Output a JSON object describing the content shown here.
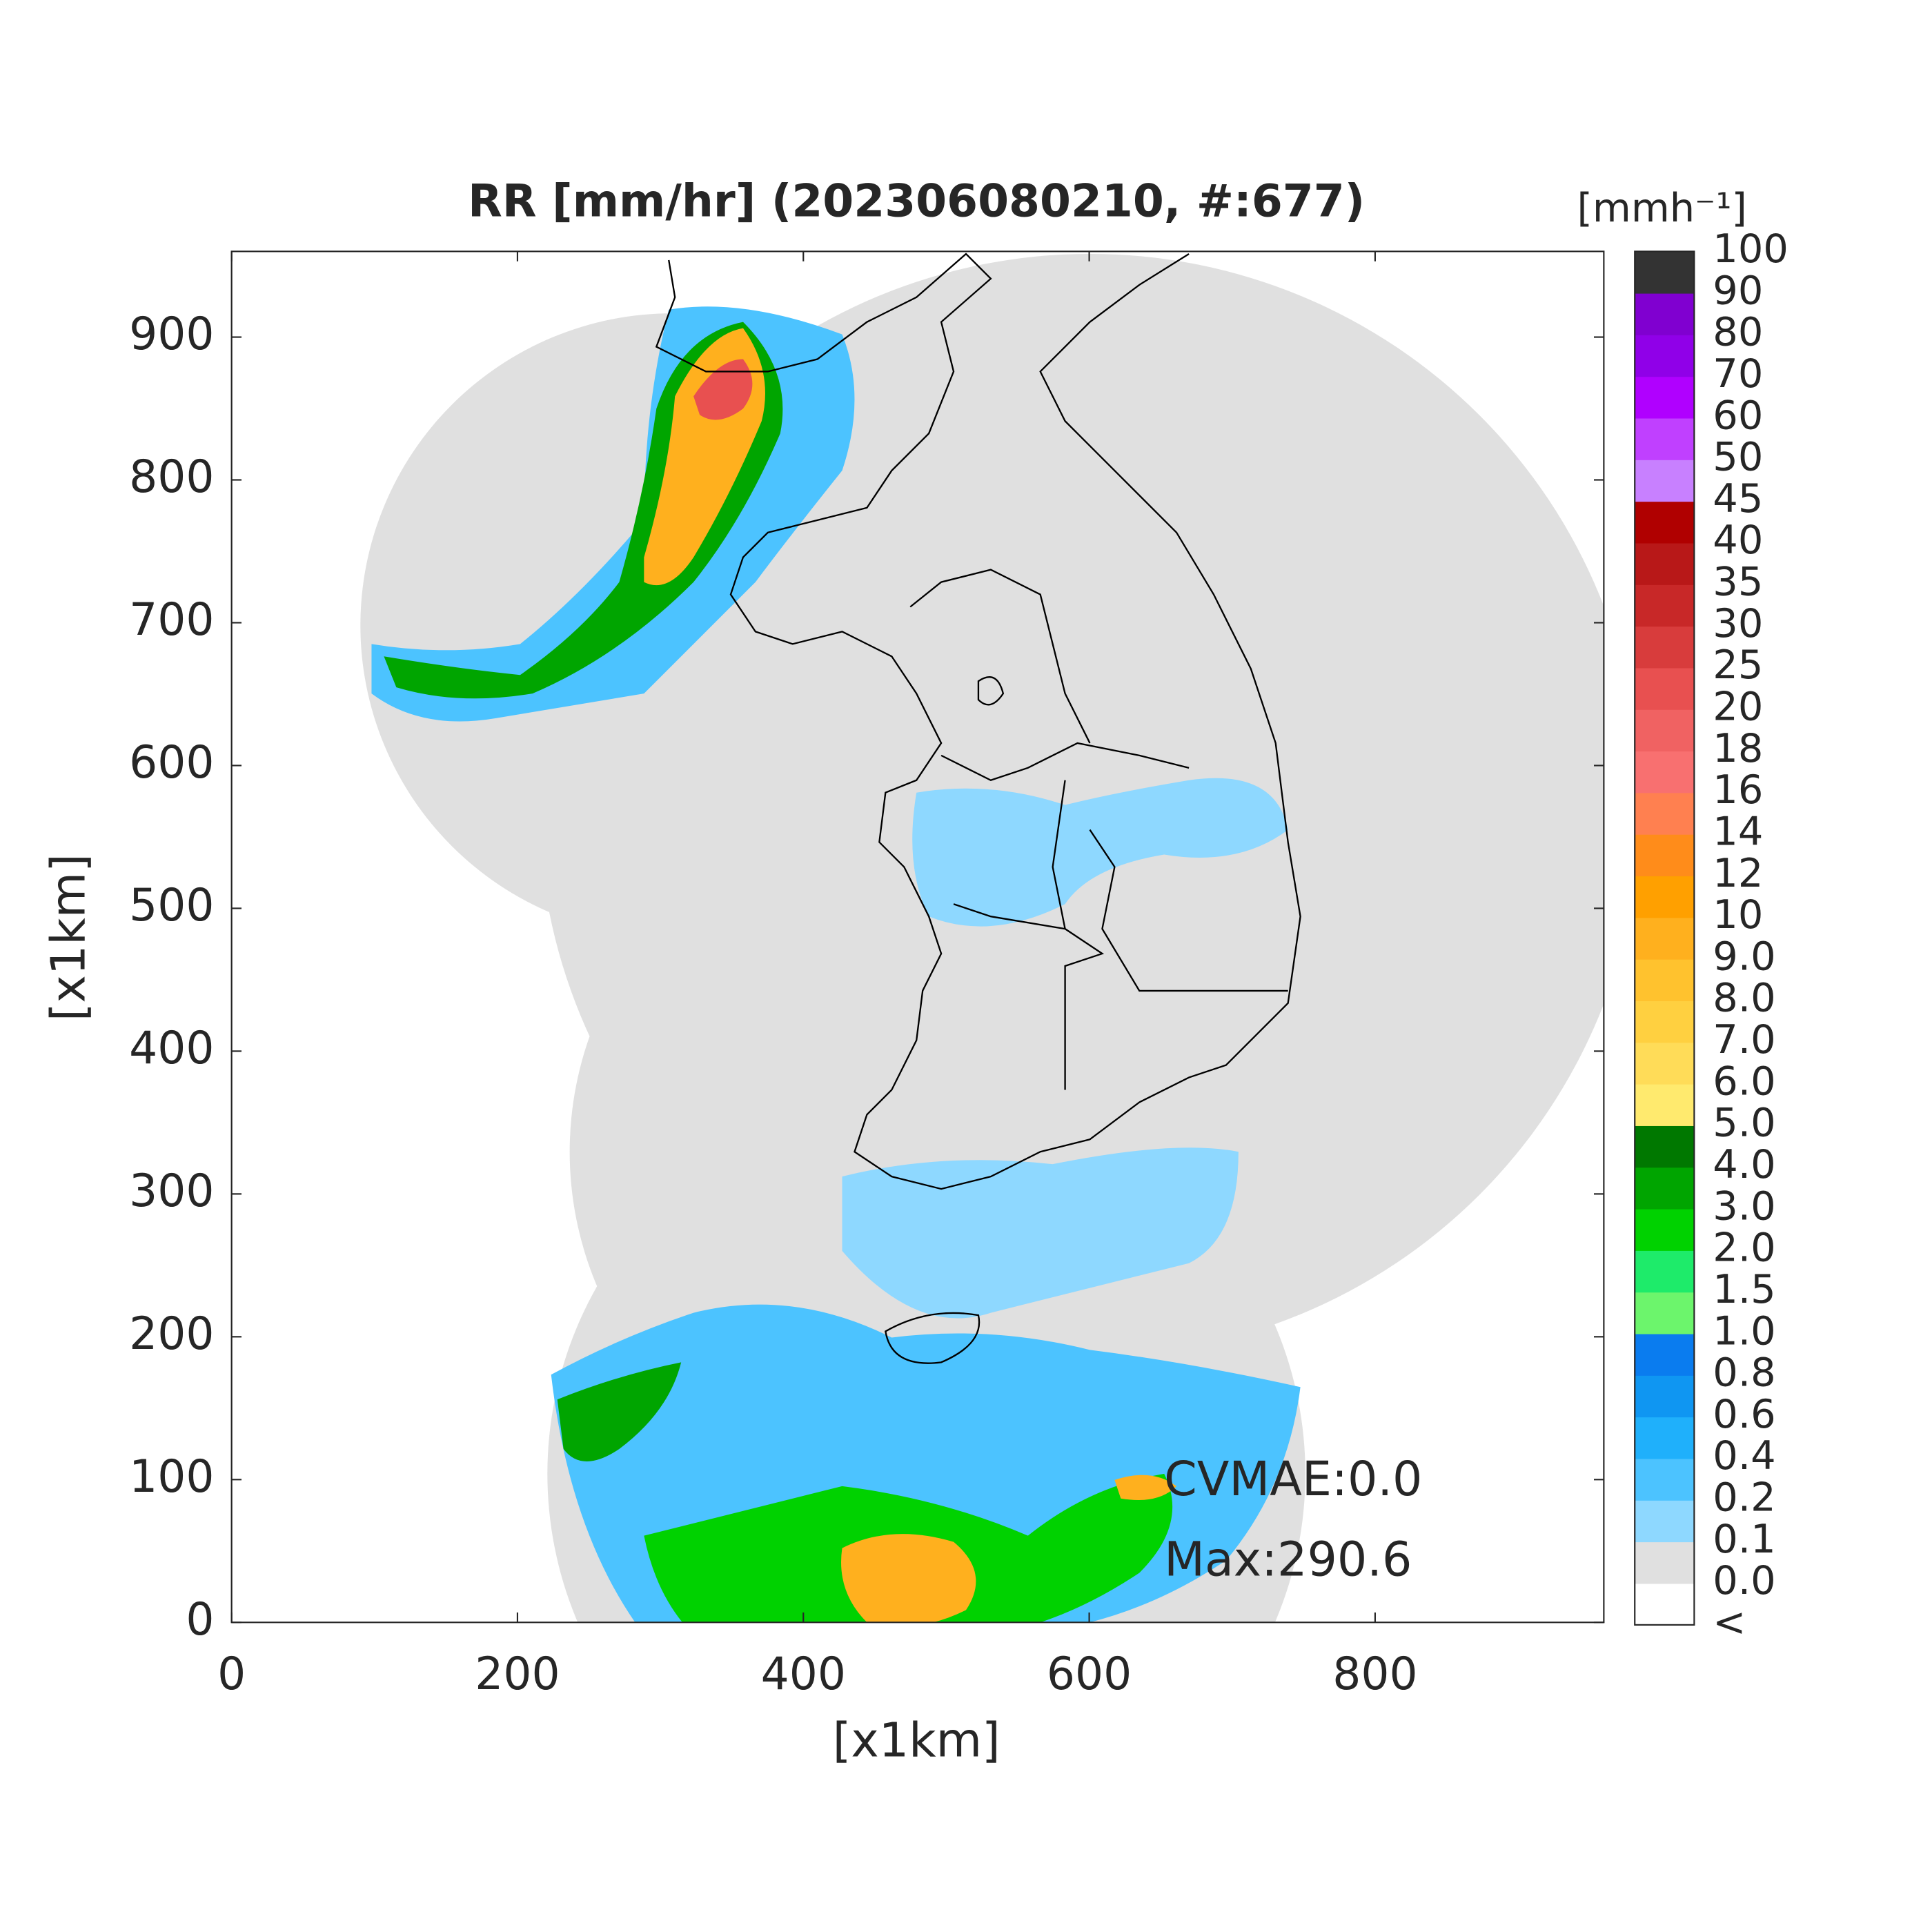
{
  "chart_data": {
    "type": "map",
    "title": "RR [mm/hr] (202306080210, #:677)",
    "x_label": "[x1km]",
    "y_label": "[x1km]",
    "xlim": [
      0,
      960
    ],
    "ylim": [
      0,
      960
    ],
    "xticks": [
      0,
      200,
      400,
      600,
      800
    ],
    "yticks": [
      0,
      100,
      200,
      300,
      400,
      500,
      600,
      700,
      800,
      900
    ],
    "annotations": [
      "CVMAE:0.0",
      "Max:290.6"
    ],
    "colorbar": {
      "label": "[mmh⁻¹]",
      "levels": [
        "<",
        "0.0",
        "0.1",
        "0.2",
        "0.4",
        "0.6",
        "0.8",
        "1.0",
        "1.5",
        "2.0",
        "3.0",
        "4.0",
        "5.0",
        "6.0",
        "7.0",
        "8.0",
        "9.0",
        "10",
        "12",
        "14",
        "16",
        "18",
        "20",
        "25",
        "30",
        "35",
        "40",
        "45",
        "50",
        "60",
        "70",
        "80",
        "90",
        "100"
      ],
      "colors": [
        "#ffffff",
        "#e0e0e0",
        "#8ed8ff",
        "#4cc3ff",
        "#1fb0fb",
        "#0f96f2",
        "#0a7cef",
        "#6cf56c",
        "#1eeb6a",
        "#00d200",
        "#00a500",
        "#007800",
        "#ffea6e",
        "#ffdc58",
        "#ffd040",
        "#ffc22e",
        "#ffb01e",
        "#ffa000",
        "#ff8c1a",
        "#ff8050",
        "#f87070",
        "#f06262",
        "#e85050",
        "#d83c3c",
        "#c82828",
        "#b81818",
        "#b00000",
        "#c880ff",
        "#c040ff",
        "#b000ff",
        "#9000e8",
        "#8000d0",
        "#333333"
      ]
    }
  }
}
